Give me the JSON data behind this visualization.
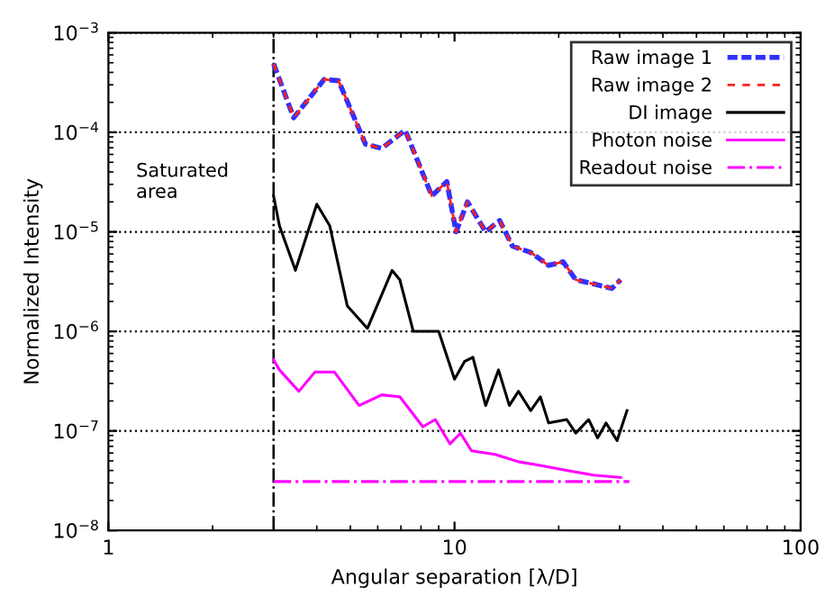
{
  "chart_data": {
    "type": "line",
    "xlabel": "Angular separation [λ/D]",
    "ylabel": "Normalized Intensity",
    "log": "xy",
    "xlim": [
      1,
      100
    ],
    "ylim": [
      1e-08,
      0.001
    ],
    "xticks": [
      1,
      10,
      100
    ],
    "yticks": [
      {
        "value": 1e-08,
        "label": "10$^{−8}$"
      },
      {
        "value": 1e-07,
        "label": "10$^{−7}$"
      },
      {
        "value": 1e-06,
        "label": "10$^{−6}$"
      },
      {
        "value": 1e-05,
        "label": "10$^{−5}$"
      },
      {
        "value": 0.0001,
        "label": "10$^{−4}$"
      },
      {
        "value": 0.001,
        "label": "10$^{−3}$"
      }
    ],
    "grid": "y",
    "legend": "top right",
    "ref_lines": [
      {
        "axis": "x",
        "value": 3,
        "color": "#000000",
        "line_style": "dashdot"
      }
    ],
    "annotations": [
      "Saturated area"
    ],
    "series": [
      {
        "name": "Raw image 1",
        "color": "#3030ff",
        "line_style": "dashed",
        "x": [
          3.0,
          3.43,
          4.2,
          4.62,
          5.53,
          6.16,
          7.2,
          8.6,
          9.5,
          10.1,
          10.9,
          12.3,
          13.5,
          14.7,
          16.6,
          18.7,
          20.6,
          22.4,
          25.2,
          28.5,
          30.2
        ],
        "values": [
          0.00049,
          0.00014,
          0.00034,
          0.00033,
          7.6e-05,
          6.9e-05,
          0.000105,
          2.3e-05,
          3.2e-05,
          1e-05,
          2e-05,
          1e-05,
          1.3e-05,
          7.2e-06,
          6.2e-06,
          4.6e-06,
          5e-06,
          3.3e-06,
          3e-06,
          2.7e-06,
          3.3e-06
        ]
      },
      {
        "name": "Raw image 2",
        "color": "#ff2020",
        "line_style": "dashed",
        "x": [
          3.0,
          3.43,
          4.2,
          4.62,
          5.53,
          6.16,
          7.2,
          8.6,
          9.5,
          10.1,
          10.9,
          12.3,
          13.5,
          14.7,
          16.6,
          18.7,
          20.6,
          22.4,
          25.2,
          28.5,
          30.2
        ],
        "values": [
          0.00049,
          0.00014,
          0.00034,
          0.00033,
          7.6e-05,
          6.9e-05,
          0.000105,
          2.3e-05,
          3.2e-05,
          1e-05,
          2e-05,
          1e-05,
          1.3e-05,
          7.2e-06,
          6.2e-06,
          4.6e-06,
          5e-06,
          3.3e-06,
          3e-06,
          2.7e-06,
          3.3e-06
        ]
      },
      {
        "name": "DI image",
        "color": "#000000",
        "line_style": "solid",
        "x": [
          3.0,
          3.12,
          3.47,
          4.0,
          4.36,
          4.9,
          5.6,
          6.6,
          6.95,
          7.6,
          8.4,
          9.0,
          10.0,
          10.7,
          11.3,
          12.3,
          13.4,
          14.4,
          15.3,
          16.6,
          17.7,
          18.7,
          21.1,
          22.4,
          24.4,
          25.9,
          27.4,
          29.5,
          31.5
        ],
        "values": [
          2.3e-05,
          1.15e-05,
          4.1e-06,
          1.9e-05,
          1.15e-05,
          1.8e-06,
          1.07e-06,
          4.1e-06,
          3.3e-06,
          1e-06,
          1e-06,
          1e-06,
          3.3e-07,
          5e-07,
          5.5e-07,
          1.8e-07,
          4.1e-07,
          1.8e-07,
          2.5e-07,
          1.6e-07,
          2.2e-07,
          1.2e-07,
          1.3e-07,
          9.5e-08,
          1.3e-07,
          8.5e-08,
          1.2e-07,
          8e-08,
          1.6e-07
        ]
      },
      {
        "name": "Photon noise",
        "color": "#ff00ff",
        "line_style": "solid",
        "x": [
          3.0,
          3.12,
          3.55,
          3.95,
          4.5,
          5.3,
          6.16,
          6.95,
          8.1,
          8.8,
          9.7,
          10.4,
          11.2,
          13.1,
          15.3,
          17.7,
          21.1,
          25.2,
          30.2
        ],
        "values": [
          5.2e-07,
          4.1e-07,
          2.5e-07,
          3.9e-07,
          3.9e-07,
          1.8e-07,
          2.3e-07,
          2.2e-07,
          1.1e-07,
          1.3e-07,
          7.4e-08,
          9.5e-08,
          6.3e-08,
          5.8e-08,
          4.9e-08,
          4.5e-08,
          4e-08,
          3.6e-08,
          3.4e-08
        ]
      },
      {
        "name": "Readout noise",
        "color": "#ff00ff",
        "line_style": "dashdot",
        "x": [
          3.0,
          32.0
        ],
        "values": [
          3.1e-08,
          3.1e-08
        ]
      }
    ]
  }
}
